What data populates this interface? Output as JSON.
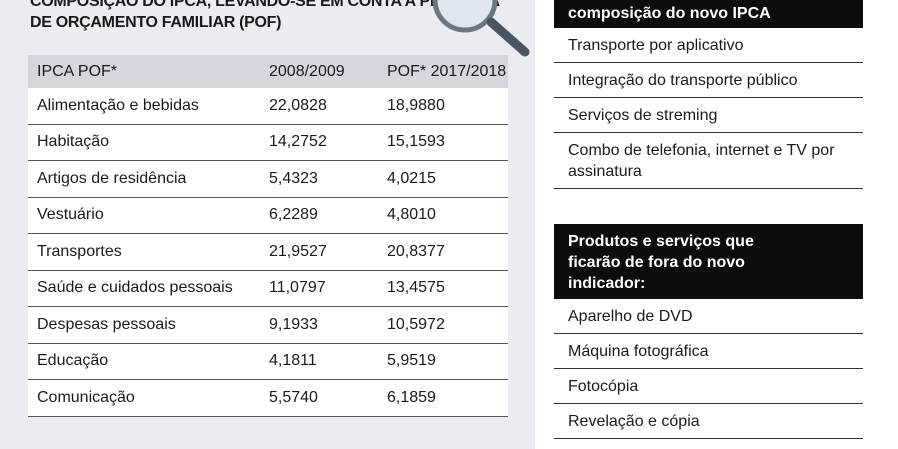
{
  "header": {
    "lines": [
      "COMPOSIÇÃO DO IPCA, LEVANDO-SE EM CONTA A PESQUISA",
      "DE ORÇAMENTO FAMILIAR (POF)"
    ]
  },
  "table": {
    "columns": [
      "IPCA POF*",
      "2008/2009",
      "POF* 2017/2018"
    ],
    "rows": [
      [
        "Alimentação e bebidas",
        "22,0828",
        "18,9880"
      ],
      [
        "Habitação",
        "14,2752",
        "15,1593"
      ],
      [
        "Artigos de residência",
        "5,4323",
        "4,0215"
      ],
      [
        "Vestuário",
        "6,2289",
        "4,8010"
      ],
      [
        "Transportes",
        "21,9527",
        "20,8377"
      ],
      [
        "Saúde e cuidados pessoais",
        "11,0797",
        "13,4575"
      ],
      [
        "Despesas pessoais",
        "9,1933",
        "10,5972"
      ],
      [
        "Educação",
        "4,1811",
        "5,9519"
      ],
      [
        "Comunicação",
        "5,5740",
        "6,1859"
      ]
    ]
  },
  "included": {
    "title": "composição do novo IPCA",
    "items": [
      "Transporte por aplicativo",
      "Integração do transporte público",
      "Serviços de streming",
      "Combo de telefonia, internet e TV por assinatura"
    ]
  },
  "excluded": {
    "title": "Produtos e serviços que ficarão de fora do novo indicador:",
    "items": [
      "Aparelho de DVD",
      "Máquina fotográfica",
      "Fotocópia",
      "Revelação e cópia"
    ]
  }
}
